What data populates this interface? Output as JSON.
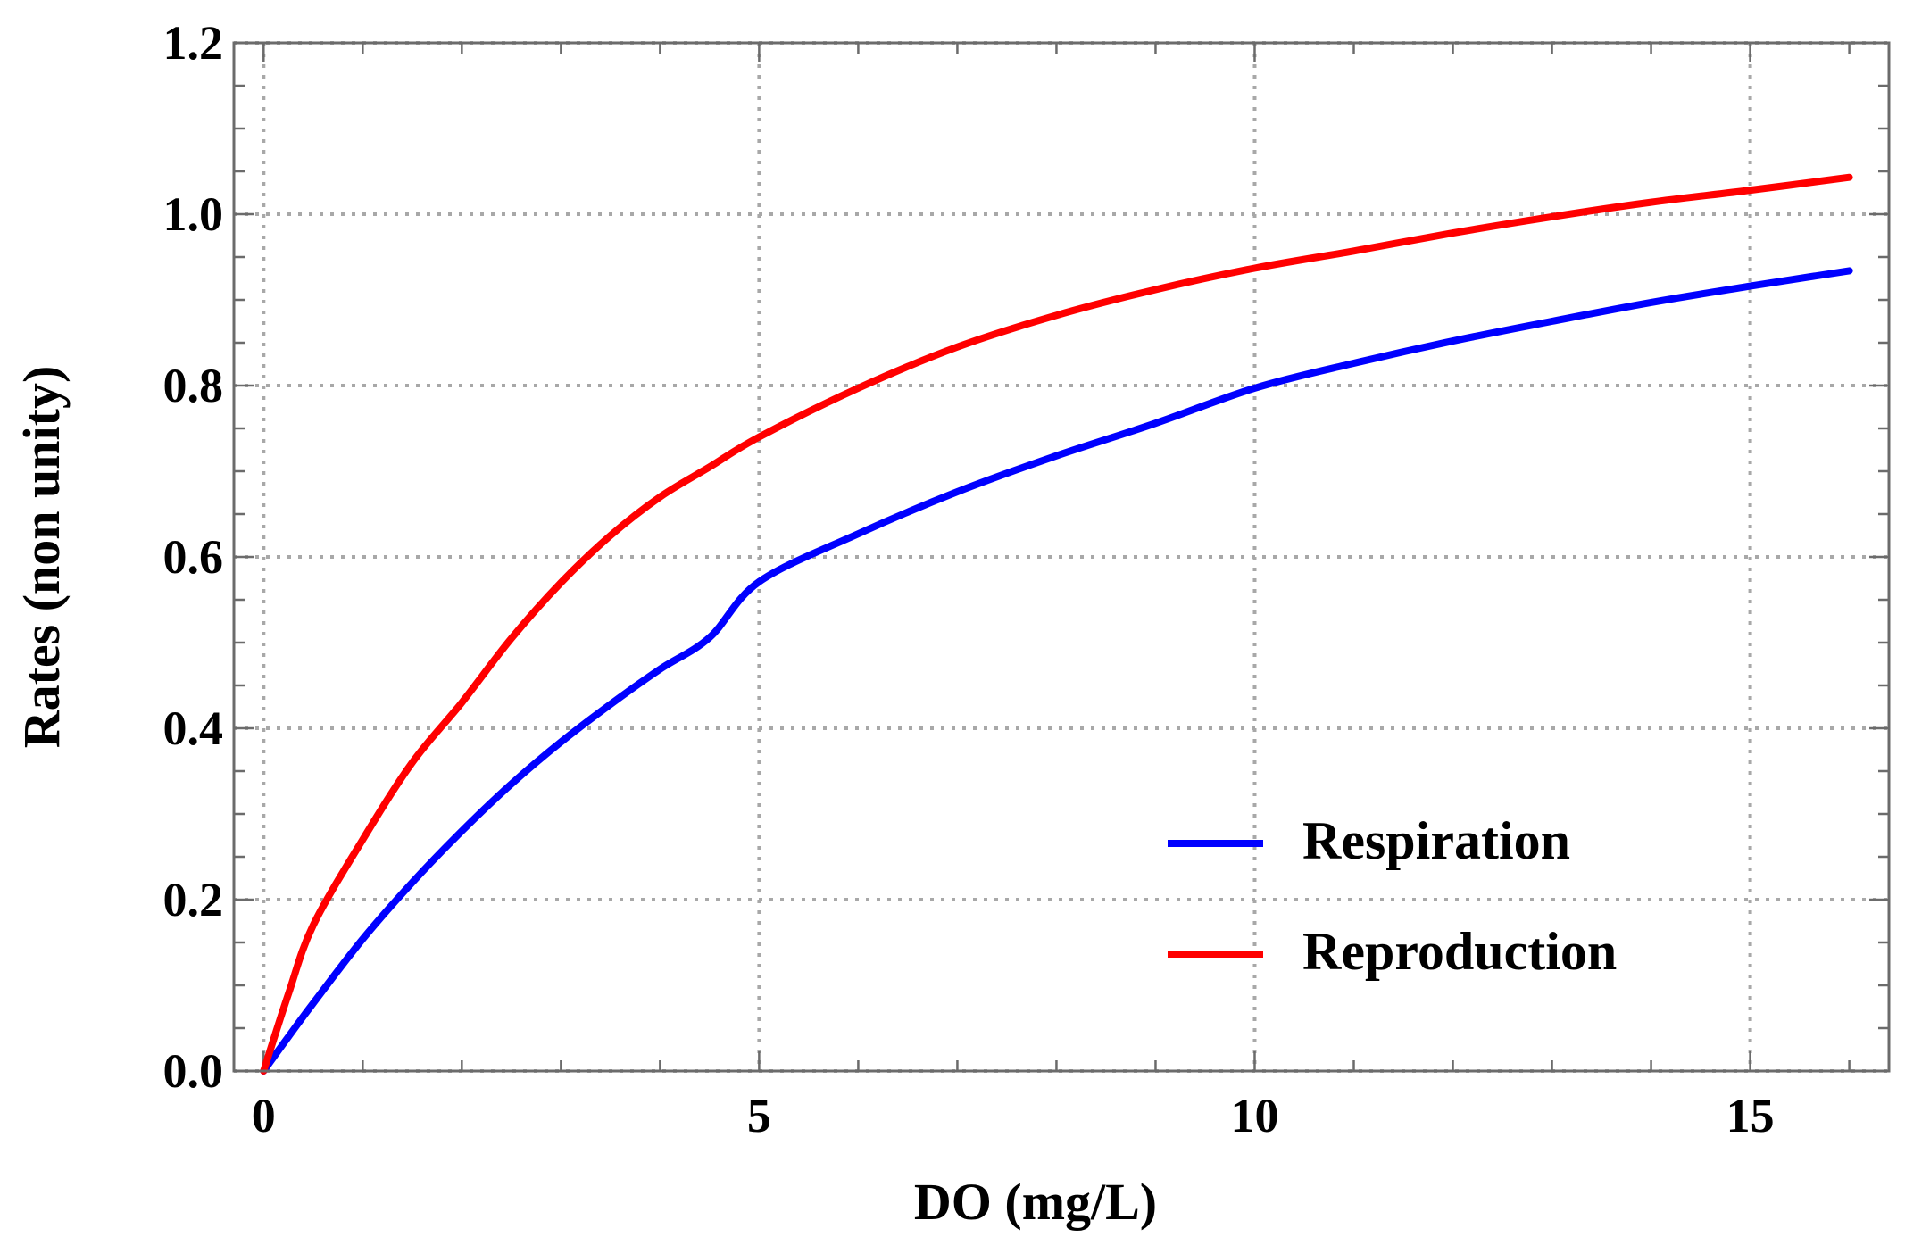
{
  "chart_data": {
    "type": "line",
    "title": "",
    "xlabel": "DO (mg/L)",
    "ylabel": "Rates (non unity)",
    "xlim": [
      -0.3,
      16.4
    ],
    "ylim": [
      0.0,
      1.2
    ],
    "x_ticks": [
      0,
      5,
      10,
      15
    ],
    "x_tick_labels": [
      "0",
      "5",
      "10",
      "15"
    ],
    "y_ticks": [
      0.0,
      0.2,
      0.4,
      0.6,
      0.8,
      1.0,
      1.2
    ],
    "y_tick_labels": [
      "0.0",
      "0.2",
      "0.4",
      "0.6",
      "0.8",
      "1.0",
      "1.2"
    ],
    "x_minor_step": 1,
    "y_minor_step": 0.05,
    "grid": true,
    "legend_position": "bottom-right",
    "series": [
      {
        "name": "Respiration",
        "color": "#0000ff",
        "x": [
          0,
          0.25,
          0.5,
          1,
          1.5,
          2,
          2.5,
          3,
          3.5,
          4,
          4.5,
          5,
          6,
          7,
          8,
          9,
          10,
          11,
          12,
          13,
          14,
          15,
          16
        ],
        "y": [
          0.0,
          0.04,
          0.079,
          0.154,
          0.22,
          0.28,
          0.335,
          0.384,
          0.428,
          0.469,
          0.506,
          0.571,
          0.627,
          0.676,
          0.718,
          0.756,
          0.797,
          0.826,
          0.852,
          0.875,
          0.897,
          0.916,
          0.934
        ]
      },
      {
        "name": "Reproduction",
        "color": "#ff0000",
        "x": [
          0,
          0.25,
          0.5,
          1,
          1.5,
          2,
          2.5,
          3,
          3.5,
          4,
          4.5,
          5,
          6,
          7,
          8,
          9,
          10,
          11,
          12,
          13,
          14,
          15,
          16
        ],
        "y": [
          0.0,
          0.09,
          0.17,
          0.27,
          0.36,
          0.43,
          0.505,
          0.57,
          0.625,
          0.67,
          0.705,
          0.74,
          0.797,
          0.845,
          0.882,
          0.912,
          0.937,
          0.957,
          0.978,
          0.997,
          1.014,
          1.028,
          1.043
        ]
      }
    ]
  }
}
